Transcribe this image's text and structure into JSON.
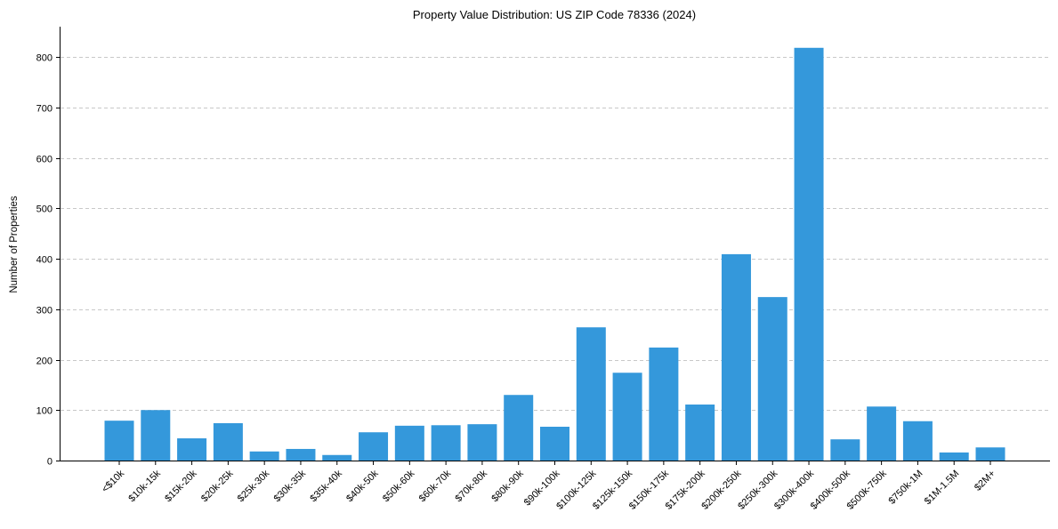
{
  "chart_data": {
    "type": "bar",
    "title": "Property Value Distribution: US ZIP Code 78336 (2024)",
    "xlabel": "",
    "ylabel": "Number of Properties",
    "ylim": [
      0,
      860
    ],
    "yticks": [
      0,
      100,
      200,
      300,
      400,
      500,
      600,
      700,
      800
    ],
    "grid": "horizontal dashed",
    "bar_color": "#3498db",
    "categories": [
      "<$10k",
      "$10k-15k",
      "$15k-20k",
      "$20k-25k",
      "$25k-30k",
      "$30k-35k",
      "$35k-40k",
      "$40k-50k",
      "$50k-60k",
      "$60k-70k",
      "$70k-80k",
      "$80k-90k",
      "$90k-100k",
      "$100k-125k",
      "$125k-150k",
      "$150k-175k",
      "$175k-200k",
      "$200k-250k",
      "$250k-300k",
      "$300k-400k",
      "$400k-500k",
      "$500k-750k",
      "$750k-1M",
      "$1M-1.5M",
      "$2M+"
    ],
    "values": [
      79,
      100,
      44,
      74,
      18,
      23,
      11,
      56,
      69,
      70,
      72,
      130,
      67,
      264,
      174,
      224,
      111,
      409,
      324,
      818,
      42,
      107,
      78,
      16,
      26
    ]
  }
}
